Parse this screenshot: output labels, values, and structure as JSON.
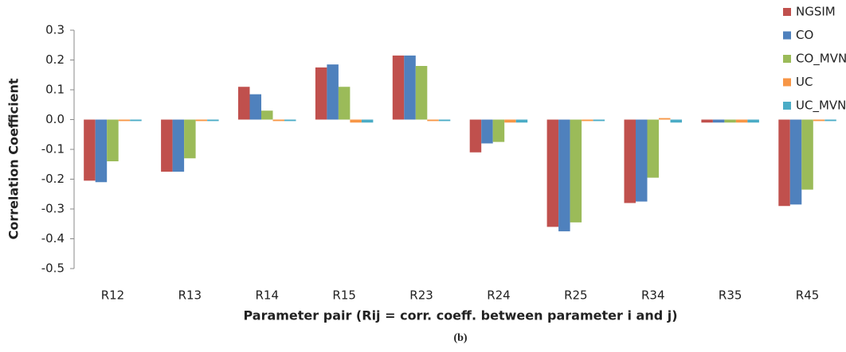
{
  "chart_data": {
    "type": "bar",
    "y_label": "Correlation Coefficient",
    "x_label": "Parameter pair (Rij = corr. coeff. between parameter i and j)",
    "caption": "(b)",
    "categories": [
      "R12",
      "R13",
      "R14",
      "R15",
      "R23",
      "R24",
      "R25",
      "R34",
      "R35",
      "R45"
    ],
    "series": [
      {
        "name": "NGSIM",
        "color": "#c0504d",
        "values": [
          -0.205,
          -0.175,
          0.11,
          0.175,
          0.215,
          -0.11,
          -0.36,
          -0.28,
          -0.01,
          -0.29
        ]
      },
      {
        "name": "CO",
        "color": "#4f81bd",
        "values": [
          -0.21,
          -0.175,
          0.085,
          0.185,
          0.215,
          -0.08,
          -0.375,
          -0.275,
          -0.01,
          -0.285
        ]
      },
      {
        "name": "CO_MVN",
        "color": "#9bbb59",
        "values": [
          -0.14,
          -0.13,
          0.03,
          0.11,
          0.18,
          -0.075,
          -0.345,
          -0.195,
          -0.01,
          -0.235
        ]
      },
      {
        "name": "UC",
        "color": "#f79646",
        "values": [
          -0.005,
          -0.005,
          -0.005,
          -0.01,
          -0.005,
          -0.01,
          -0.005,
          0.005,
          -0.01,
          -0.005
        ]
      },
      {
        "name": "UC_MVN",
        "color": "#4bacc6",
        "values": [
          -0.005,
          -0.005,
          -0.005,
          -0.01,
          -0.005,
          -0.01,
          -0.005,
          -0.01,
          -0.01,
          -0.005
        ]
      }
    ],
    "ylim": [
      -0.5,
      0.3
    ],
    "yticks": [
      0.3,
      0.2,
      0.1,
      {
        "value": 0,
        "label": "0.0"
      },
      -0.1,
      -0.2,
      -0.3,
      -0.4,
      -0.5
    ],
    "grid": false,
    "legend": "top-right"
  }
}
